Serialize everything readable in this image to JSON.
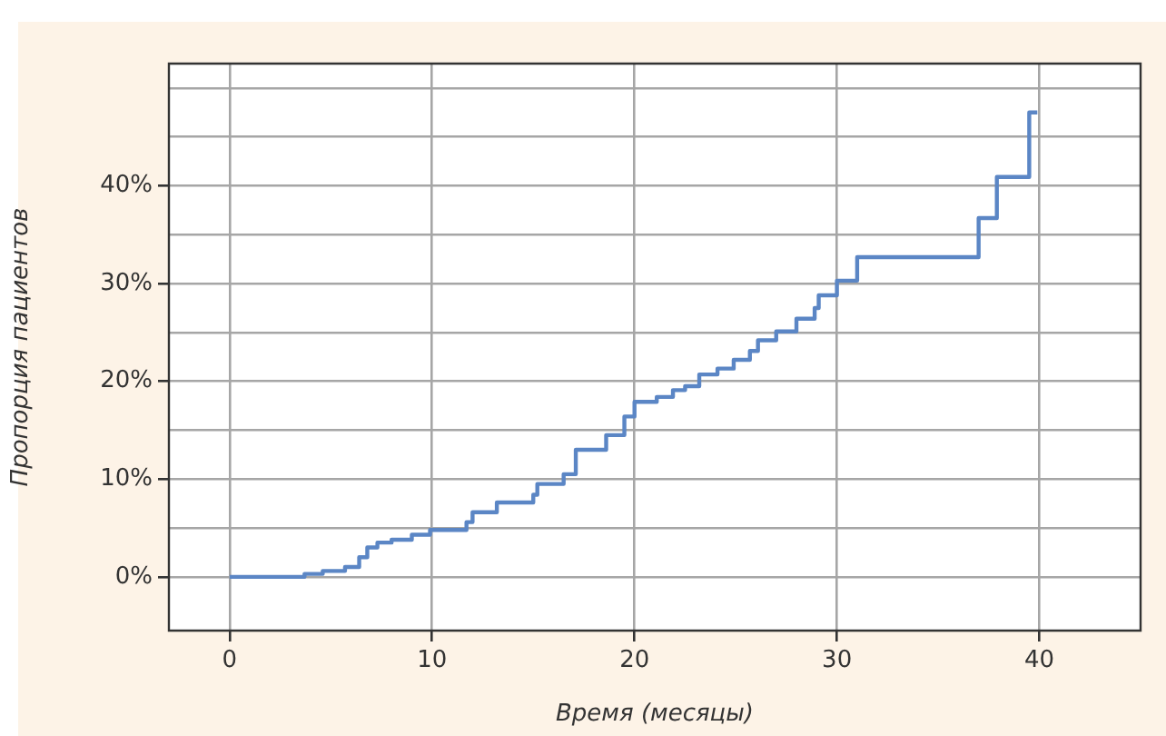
{
  "chart_data": {
    "type": "step",
    "xlabel": "Время (месяцы)",
    "ylabel": "Пропорция пациентов",
    "series": [
      {
        "color": "#5b86c5",
        "x": [
          0,
          3.7,
          4.6,
          5.7,
          6.4,
          6.8,
          7.3,
          8,
          9,
          9.9,
          11.7,
          12,
          13.2,
          15,
          15.2,
          16.5,
          17.1,
          18.6,
          19.5,
          20,
          21.1,
          21.9,
          22.5,
          23.2,
          24.1,
          24.9,
          25.7,
          26.1,
          27,
          28,
          28.9,
          29.1,
          30,
          31,
          37,
          37.9,
          39.5,
          39.9
        ],
        "values": [
          0,
          0.3,
          0.6,
          1,
          2,
          3,
          3.5,
          3.8,
          4.3,
          4.8,
          5.6,
          6.6,
          7.6,
          8.4,
          9.5,
          10.5,
          13,
          14.5,
          16.4,
          17.9,
          18.4,
          19.1,
          19.5,
          20.7,
          21.3,
          22.2,
          23.1,
          24.2,
          25.1,
          26.4,
          27.5,
          28.8,
          30.3,
          32.7,
          36.7,
          40.9,
          47.5,
          47.5
        ]
      }
    ],
    "xlim": [
      -3,
      45
    ],
    "xticks": [
      0,
      10,
      20,
      30,
      40
    ],
    "ylim": [
      -5.5,
      52.5
    ],
    "yticks": [
      {
        "value": 0,
        "label": "0%"
      },
      {
        "value": 5,
        "label": null
      },
      {
        "value": 10,
        "label": "10%"
      },
      {
        "value": 15,
        "label": null
      },
      {
        "value": 20,
        "label": "20%"
      },
      {
        "value": 25,
        "label": null
      },
      {
        "value": 30,
        "label": "30%"
      },
      {
        "value": 35,
        "label": null
      },
      {
        "value": 40,
        "label": "40%"
      },
      {
        "value": 45,
        "label": null
      },
      {
        "value": 50,
        "label": null
      }
    ],
    "grid": true,
    "legend": false,
    "marker": "none",
    "line_style": "solid"
  }
}
